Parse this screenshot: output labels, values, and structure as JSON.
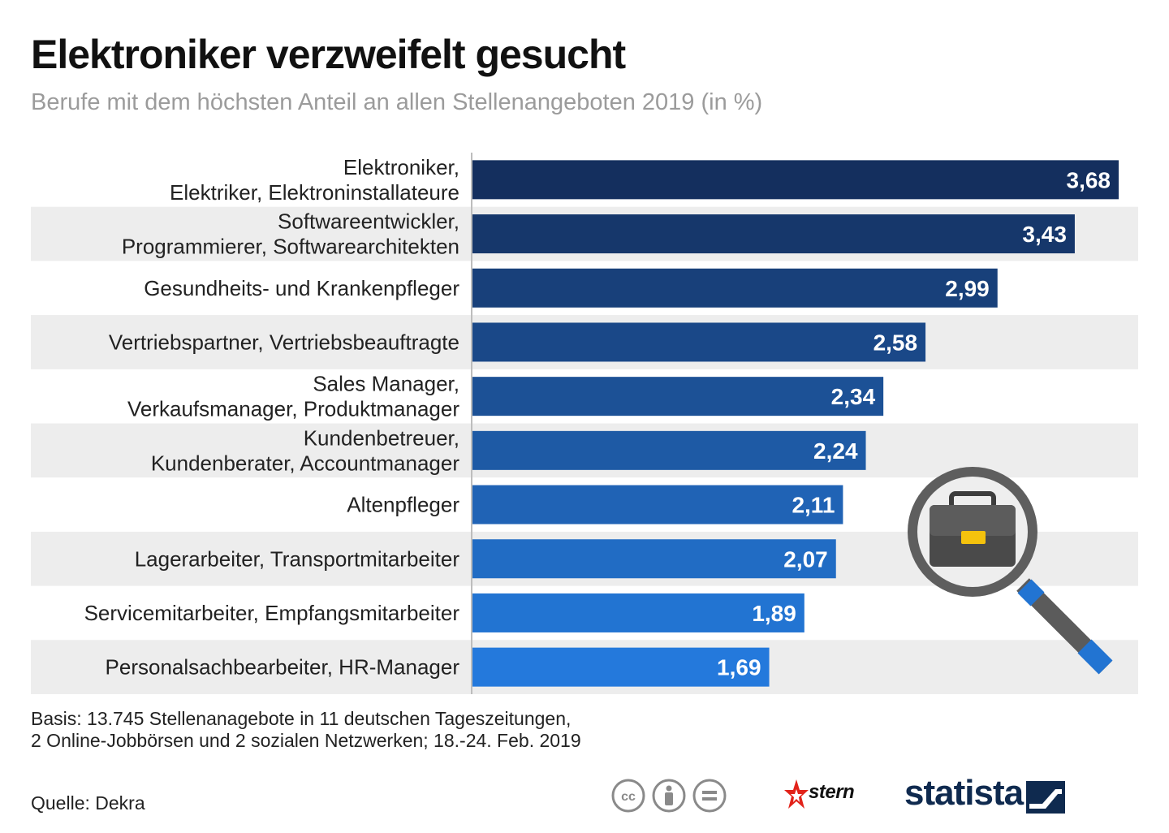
{
  "header": {
    "title": "Elektroniker verzweifelt gesucht",
    "subtitle": "Berufe mit dem höchsten Anteil an allen Stellenangeboten 2019 (in %)"
  },
  "chart_data": {
    "type": "bar",
    "orientation": "horizontal",
    "title": "Elektroniker verzweifelt gesucht",
    "subtitle": "Berufe mit dem höchsten Anteil an allen Stellenangeboten 2019 (in %)",
    "unit": "%",
    "categories": [
      [
        "Elektroniker,",
        "Elektriker, Elektroninstallateure"
      ],
      [
        "Softwareentwickler,",
        "Programmierer, Softwarearchitekten"
      ],
      [
        "Gesundheits- und Krankenpfleger"
      ],
      [
        "Vertriebspartner, Vertriebsbeauftragte"
      ],
      [
        "Sales Manager,",
        "Verkaufsmanager, Produktmanager"
      ],
      [
        "Kundenbetreuer,",
        "Kundenberater, Accountmanager"
      ],
      [
        "Altenpfleger"
      ],
      [
        "Lagerarbeiter, Transportmitarbeiter"
      ],
      [
        "Servicemitarbeiter, Empfangsmitarbeiter"
      ],
      [
        "Personalsachbearbeiter, HR-Manager"
      ]
    ],
    "values": [
      3.68,
      3.43,
      2.99,
      2.58,
      2.34,
      2.24,
      2.11,
      2.07,
      1.89,
      1.69
    ],
    "value_labels": [
      "3,68",
      "3,43",
      "2,99",
      "2,58",
      "2,34",
      "2,24",
      "2,11",
      "2,07",
      "1,89",
      "1,69"
    ],
    "bar_colors": [
      "#142f5e",
      "#16376b",
      "#18407a",
      "#1a4888",
      "#1c5196",
      "#1e5aa5",
      "#2063b5",
      "#216cc4",
      "#2274d2",
      "#2479dc"
    ],
    "stripe_color": "#ededed",
    "xlim": [
      0,
      3.68
    ],
    "grid": false
  },
  "footer": {
    "note_line1": "Basis: 13.745 Stellenanagebote in 11 deutschen Tageszeitungen,",
    "note_line2": "2 Online-Jobbörsen und 2 sozialen Netzwerken; 18.-24. Feb. 2019",
    "source": "Quelle: Dekra",
    "brand_stern": "stern",
    "brand_statista": "statista",
    "icons": [
      "cc-icon",
      "by-icon",
      "nd-icon"
    ]
  }
}
